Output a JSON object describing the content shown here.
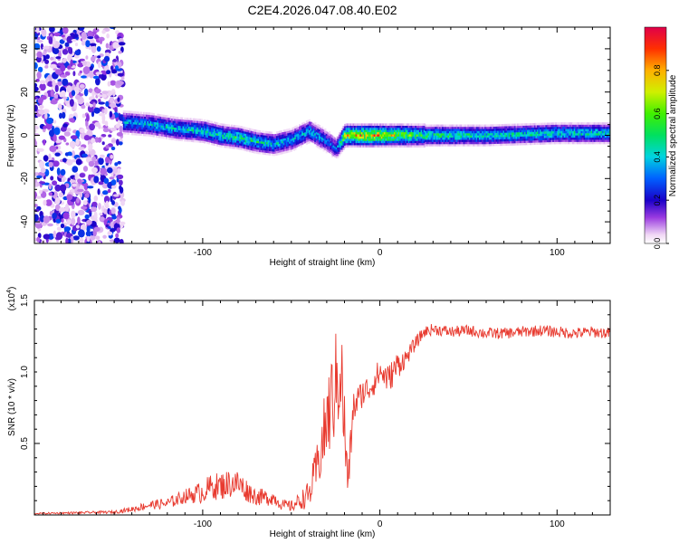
{
  "title": "C2E4.2026.047.08.40.E02",
  "chart_data": [
    {
      "type": "heatmap",
      "xlabel": "Height of straight line (km)",
      "ylabel": "Frequency (Hz)",
      "xlim": [
        -195,
        130
      ],
      "ylim": [
        -50,
        50
      ],
      "xticks": [
        -100,
        0,
        100
      ],
      "xtick_labels": [
        "-100",
        "0",
        "100"
      ],
      "yticks": [
        -40,
        -20,
        0,
        20,
        40
      ],
      "ytick_labels": [
        "-40",
        "-20",
        "0",
        "20",
        "40"
      ],
      "ridge": {
        "x": [
          -145,
          -130,
          -115,
          -100,
          -90,
          -80,
          -70,
          -60,
          -50,
          -40,
          -30,
          -25,
          -20,
          -10,
          0,
          20,
          60,
          100,
          130
        ],
        "freq": [
          6,
          5,
          3,
          2,
          0,
          -1,
          -3,
          -4,
          -2,
          2,
          -3,
          -6,
          0,
          0,
          0,
          0,
          0,
          1,
          1
        ],
        "peak_amp": [
          0.4,
          0.45,
          0.45,
          0.5,
          0.5,
          0.55,
          0.5,
          0.45,
          0.4,
          0.45,
          0.35,
          0.3,
          0.8,
          0.85,
          0.85,
          0.6,
          0.5,
          0.5,
          0.5
        ]
      },
      "colorbar": {
        "label": "Normalized spectral amplitude",
        "range": [
          0,
          1
        ],
        "ticks": [
          0.0,
          0.2,
          0.4,
          0.6,
          0.8
        ],
        "tick_labels": [
          "0.0",
          "0.2",
          "0.4",
          "0.6",
          "0.8"
        ]
      }
    },
    {
      "type": "line",
      "xlabel": "Height of straight line (km)",
      "ylabel": "SNR (10 * v/v)",
      "y_multiplier_label": "(x10",
      "y_multiplier_exp": "4",
      "y_multiplier_close": ")",
      "xlim": [
        -195,
        130
      ],
      "ylim": [
        0,
        1.5
      ],
      "xticks": [
        -100,
        0,
        100
      ],
      "xtick_labels": [
        "-100",
        "0",
        "100"
      ],
      "yticks": [
        0.5,
        1.0,
        1.5
      ],
      "ytick_labels": [
        "0.5",
        "1.0",
        "1.5"
      ],
      "series": [
        {
          "name": "SNR",
          "color": "#e83a2f",
          "x": [
            -195,
            -150,
            -140,
            -130,
            -120,
            -110,
            -100,
            -95,
            -90,
            -85,
            -80,
            -75,
            -70,
            -65,
            -60,
            -55,
            -50,
            -45,
            -40,
            -35,
            -30,
            -25,
            -22,
            -20,
            -18,
            -15,
            -10,
            -5,
            0,
            5,
            10,
            15,
            20,
            25,
            30,
            40,
            50,
            60,
            70,
            80,
            90,
            100,
            110,
            120,
            130
          ],
          "y": [
            0.01,
            0.02,
            0.04,
            0.07,
            0.08,
            0.13,
            0.16,
            0.2,
            0.2,
            0.22,
            0.22,
            0.17,
            0.13,
            0.12,
            0.12,
            0.07,
            0.06,
            0.1,
            0.14,
            0.35,
            0.65,
            0.9,
            1.05,
            0.6,
            0.2,
            0.75,
            0.85,
            0.9,
            1.0,
            0.95,
            1.05,
            1.1,
            1.2,
            1.28,
            1.3,
            1.28,
            1.29,
            1.27,
            1.27,
            1.28,
            1.29,
            1.28,
            1.27,
            1.28,
            1.27
          ],
          "noise": [
            0.005,
            0.01,
            0.02,
            0.03,
            0.04,
            0.05,
            0.08,
            0.09,
            0.1,
            0.1,
            0.1,
            0.08,
            0.06,
            0.06,
            0.05,
            0.04,
            0.04,
            0.06,
            0.1,
            0.18,
            0.3,
            0.38,
            0.4,
            0.3,
            0.15,
            0.12,
            0.1,
            0.1,
            0.1,
            0.1,
            0.1,
            0.06,
            0.05,
            0.04,
            0.04,
            0.04,
            0.04,
            0.04,
            0.04,
            0.04,
            0.04,
            0.04,
            0.04,
            0.04,
            0.04
          ]
        }
      ]
    }
  ]
}
